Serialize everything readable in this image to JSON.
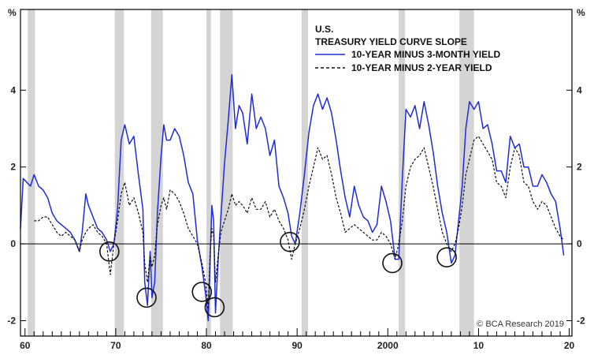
{
  "chart_data": {
    "type": "line",
    "title_lines": [
      "U.S.",
      "TREASURY YIELD CURVE SLOPE"
    ],
    "units_left": "%",
    "units_right": "%",
    "source": "© BCA Research 2019",
    "x_range": [
      1959.5,
      2020.3
    ],
    "y_range": [
      -2.4,
      6.1
    ],
    "grid": false,
    "legend_position": "top-right",
    "x_ticks": [
      {
        "value": 1960,
        "label": "60"
      },
      {
        "value": 1970,
        "label": "70"
      },
      {
        "value": 1980,
        "label": "80"
      },
      {
        "value": 1990,
        "label": "90"
      },
      {
        "value": 2000,
        "label": "2000"
      },
      {
        "value": 2010,
        "label": "10"
      },
      {
        "value": 2020,
        "label": "20"
      }
    ],
    "y_ticks": [
      {
        "value": -2,
        "label": "-2"
      },
      {
        "value": 0,
        "label": "0"
      },
      {
        "value": 2,
        "label": "2"
      },
      {
        "value": 4,
        "label": "4"
      }
    ],
    "reference_line": 0,
    "recessions": [
      [
        1960.3,
        1961.1
      ],
      [
        1969.9,
        1970.9
      ],
      [
        1973.9,
        1975.2
      ],
      [
        1980.0,
        1980.5
      ],
      [
        1981.5,
        1982.9
      ],
      [
        1990.5,
        1991.2
      ],
      [
        2001.2,
        2001.9
      ],
      [
        2007.9,
        2009.5
      ]
    ],
    "inversion_markers": [
      {
        "x": 1969.3,
        "y": -0.2
      },
      {
        "x": 1973.4,
        "y": -1.4
      },
      {
        "x": 1979.5,
        "y": -1.25
      },
      {
        "x": 1980.9,
        "y": -1.65
      },
      {
        "x": 1989.2,
        "y": 0.05
      },
      {
        "x": 2000.5,
        "y": -0.5
      },
      {
        "x": 2006.5,
        "y": -0.35
      }
    ],
    "series": [
      {
        "name": "10-YEAR MINUS 3-MONTH YIELD",
        "color": "#1f2bd6",
        "style": "solid",
        "x": [
          1959.5,
          1959.8,
          1960.2,
          1960.6,
          1961.0,
          1961.5,
          1962.0,
          1962.5,
          1963.0,
          1963.5,
          1964.0,
          1964.5,
          1965.0,
          1965.5,
          1966.0,
          1966.3,
          1966.7,
          1967.0,
          1967.5,
          1968.0,
          1968.5,
          1969.0,
          1969.4,
          1969.8,
          1970.2,
          1970.6,
          1971.0,
          1971.5,
          1972.0,
          1972.5,
          1973.0,
          1973.2,
          1973.5,
          1973.8,
          1974.0,
          1974.3,
          1974.6,
          1975.0,
          1975.3,
          1975.6,
          1976.0,
          1976.5,
          1977.0,
          1977.5,
          1978.0,
          1978.5,
          1979.0,
          1979.5,
          1979.9,
          1980.2,
          1980.4,
          1980.6,
          1980.8,
          1981.0,
          1981.3,
          1981.6,
          1982.0,
          1982.4,
          1982.8,
          1983.2,
          1983.6,
          1984.0,
          1984.5,
          1985.0,
          1985.5,
          1986.0,
          1986.5,
          1987.0,
          1987.5,
          1988.0,
          1988.5,
          1989.0,
          1989.4,
          1989.8,
          1990.3,
          1990.8,
          1991.3,
          1991.8,
          1992.3,
          1992.8,
          1993.3,
          1993.8,
          1994.3,
          1994.8,
          1995.3,
          1995.8,
          1996.3,
          1996.8,
          1997.3,
          1997.8,
          1998.3,
          1998.8,
          1999.3,
          1999.8,
          2000.3,
          2000.8,
          2001.2,
          2001.6,
          2002.0,
          2002.5,
          2003.0,
          2003.5,
          2004.0,
          2004.5,
          2005.0,
          2005.5,
          2006.0,
          2006.5,
          2007.0,
          2007.4,
          2007.8,
          2008.2,
          2008.6,
          2009.0,
          2009.5,
          2010.0,
          2010.5,
          2011.0,
          2011.5,
          2012.0,
          2012.5,
          2013.0,
          2013.5,
          2014.0,
          2014.5,
          2015.0,
          2015.5,
          2016.0,
          2016.5,
          2017.0,
          2017.5,
          2018.0,
          2018.5,
          2019.0,
          2019.4
        ],
        "y": [
          0.4,
          1.7,
          1.6,
          1.5,
          1.8,
          1.5,
          1.4,
          1.2,
          0.8,
          0.6,
          0.5,
          0.4,
          0.3,
          0.1,
          -0.2,
          0.3,
          1.3,
          1.0,
          0.7,
          0.4,
          0.3,
          0.1,
          -0.2,
          0.0,
          0.9,
          2.7,
          3.1,
          2.6,
          2.8,
          1.8,
          0.9,
          -1.0,
          -1.6,
          -0.2,
          -1.4,
          -1.0,
          0.8,
          2.3,
          3.1,
          2.7,
          2.7,
          3.0,
          2.8,
          2.3,
          1.6,
          1.3,
          0.1,
          -0.6,
          -1.3,
          -2.0,
          -0.5,
          1.0,
          0.6,
          -1.8,
          -0.4,
          0.7,
          2.1,
          3.2,
          4.4,
          3.0,
          3.6,
          3.4,
          2.6,
          3.9,
          3.0,
          3.3,
          3.0,
          2.3,
          2.7,
          1.5,
          1.2,
          0.8,
          0.2,
          0.0,
          0.8,
          1.8,
          2.9,
          3.6,
          3.9,
          3.5,
          3.8,
          3.4,
          2.7,
          1.9,
          1.2,
          0.7,
          1.5,
          1.0,
          0.7,
          0.6,
          0.3,
          0.5,
          1.5,
          1.1,
          0.6,
          -0.4,
          -0.4,
          1.7,
          3.5,
          3.3,
          3.6,
          3.0,
          3.7,
          3.1,
          2.4,
          1.5,
          0.8,
          0.3,
          -0.5,
          -0.3,
          0.6,
          1.5,
          3.0,
          3.7,
          3.5,
          3.7,
          3.0,
          3.1,
          2.6,
          1.9,
          1.9,
          1.6,
          2.8,
          2.5,
          2.6,
          2.0,
          2.0,
          1.5,
          1.5,
          1.8,
          1.6,
          1.3,
          1.1,
          0.4,
          -0.3
        ]
      },
      {
        "name": "10-YEAR MINUS 2-YEAR YIELD",
        "color": "#111111",
        "style": "dashed",
        "x": [
          1961.0,
          1961.5,
          1962.0,
          1962.5,
          1963.0,
          1963.5,
          1964.0,
          1964.5,
          1965.0,
          1965.5,
          1966.0,
          1966.3,
          1966.7,
          1967.0,
          1967.5,
          1968.0,
          1968.5,
          1969.0,
          1969.4,
          1969.8,
          1970.2,
          1970.6,
          1971.0,
          1971.5,
          1972.0,
          1972.5,
          1973.0,
          1973.2,
          1973.5,
          1973.8,
          1974.0,
          1974.3,
          1974.6,
          1975.0,
          1975.3,
          1975.6,
          1976.0,
          1976.5,
          1977.0,
          1977.5,
          1978.0,
          1978.5,
          1979.0,
          1979.5,
          1979.9,
          1980.2,
          1980.4,
          1980.6,
          1980.8,
          1981.0,
          1981.3,
          1981.6,
          1982.0,
          1982.4,
          1982.8,
          1983.2,
          1983.6,
          1984.0,
          1984.5,
          1985.0,
          1985.5,
          1986.0,
          1986.5,
          1987.0,
          1987.5,
          1988.0,
          1988.5,
          1989.0,
          1989.4,
          1989.8,
          1990.3,
          1990.8,
          1991.3,
          1991.8,
          1992.3,
          1992.8,
          1993.3,
          1993.8,
          1994.3,
          1994.8,
          1995.3,
          1995.8,
          1996.3,
          1996.8,
          1997.3,
          1997.8,
          1998.3,
          1998.8,
          1999.3,
          1999.8,
          2000.3,
          2000.8,
          2001.2,
          2001.6,
          2002.0,
          2002.5,
          2003.0,
          2003.5,
          2004.0,
          2004.5,
          2005.0,
          2005.5,
          2006.0,
          2006.5,
          2007.0,
          2007.4,
          2007.8,
          2008.2,
          2008.6,
          2009.0,
          2009.5,
          2010.0,
          2010.5,
          2011.0,
          2011.5,
          2012.0,
          2012.5,
          2013.0,
          2013.5,
          2014.0,
          2014.5,
          2015.0,
          2015.5,
          2016.0,
          2016.5,
          2017.0,
          2017.5,
          2018.0,
          2018.5,
          2019.0,
          2019.4
        ],
        "y": [
          0.6,
          0.6,
          0.7,
          0.7,
          0.5,
          0.3,
          0.2,
          0.3,
          0.2,
          0.1,
          -0.2,
          0.1,
          0.3,
          0.4,
          0.5,
          0.3,
          0.2,
          0.0,
          -0.8,
          0.0,
          0.6,
          1.3,
          1.6,
          1.0,
          1.2,
          0.8,
          0.3,
          -0.5,
          -1.0,
          -0.3,
          -0.6,
          -0.3,
          0.5,
          1.0,
          1.2,
          0.9,
          1.4,
          1.3,
          1.1,
          0.8,
          0.4,
          0.2,
          0.0,
          -0.5,
          -1.0,
          -1.7,
          -0.3,
          0.4,
          0.2,
          -1.0,
          -0.3,
          0.3,
          0.6,
          0.9,
          1.3,
          1.0,
          1.1,
          1.0,
          0.8,
          1.2,
          0.9,
          0.9,
          1.1,
          0.7,
          0.9,
          0.6,
          0.4,
          0.1,
          -0.4,
          0.0,
          0.4,
          0.9,
          1.5,
          2.0,
          2.5,
          2.2,
          2.3,
          1.8,
          1.2,
          0.8,
          0.3,
          0.4,
          0.5,
          0.4,
          0.3,
          0.2,
          0.1,
          0.1,
          0.3,
          0.2,
          0.0,
          -0.4,
          0.0,
          0.6,
          1.5,
          2.0,
          2.2,
          2.3,
          2.5,
          2.0,
          1.5,
          0.9,
          0.3,
          0.0,
          -0.2,
          0.0,
          0.4,
          1.0,
          1.8,
          2.2,
          2.7,
          2.8,
          2.6,
          2.4,
          2.2,
          1.6,
          1.5,
          1.2,
          2.0,
          2.5,
          2.3,
          1.6,
          1.5,
          1.1,
          0.9,
          1.1,
          1.0,
          0.7,
          0.4,
          0.2,
          0.1
        ]
      }
    ]
  }
}
